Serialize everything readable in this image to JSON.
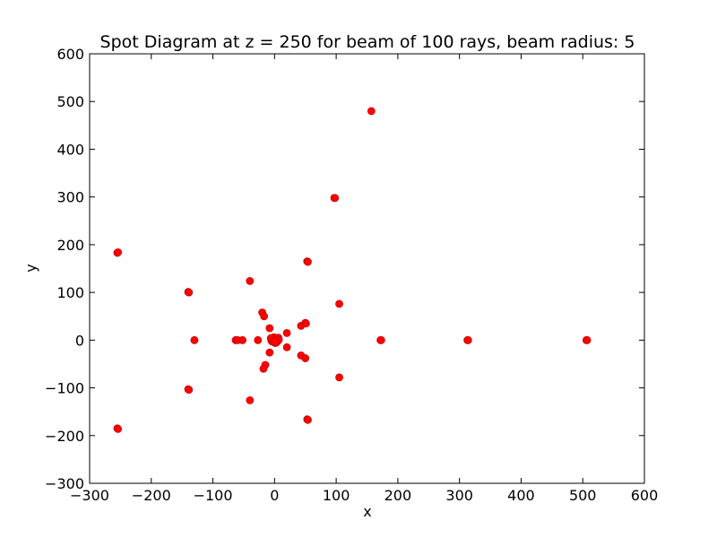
{
  "chart_data": {
    "type": "scatter",
    "title": "Spot Diagram at z = 250 for beam of 100 rays, beam radius: 5",
    "xlabel": "x",
    "ylabel": "y",
    "xlim": [
      -300,
      600
    ],
    "ylim": [
      -300,
      600
    ],
    "xticks": [
      "−300",
      "−200",
      "−100",
      "0",
      "100",
      "200",
      "300",
      "400",
      "500",
      "600"
    ],
    "yticks": [
      "−300",
      "−200",
      "−100",
      "0",
      "100",
      "200",
      "300",
      "400",
      "500",
      "600"
    ],
    "grid": false,
    "legend": "none",
    "marker_color": "#ff0000",
    "marker_edge_color": "#cc0000",
    "series": [
      {
        "x": [
          157,
          97,
          98,
          -255,
          -254,
          53,
          54,
          -40,
          -140,
          -139,
          105,
          -20,
          -17,
          -8,
          20,
          43,
          50,
          51,
          -130,
          -63,
          -60,
          -52,
          -27,
          172,
          173,
          313,
          314,
          506,
          507,
          -2,
          2,
          4,
          -4,
          6,
          0,
          3,
          -1,
          1,
          -3,
          5,
          7,
          -5,
          2,
          -6,
          0,
          20,
          43,
          50,
          -8,
          -15,
          -18,
          -40,
          -140,
          -139,
          105,
          53,
          54,
          -255,
          -254
        ],
        "y": [
          480,
          298,
          298,
          183,
          184,
          165,
          164,
          124,
          101,
          100,
          76,
          58,
          50,
          25,
          15,
          30,
          36,
          35,
          0,
          0,
          0,
          0,
          0,
          0,
          0,
          0,
          0,
          0,
          0,
          0,
          0,
          3,
          -3,
          5,
          5,
          -5,
          6,
          -6,
          2,
          -2,
          1,
          -1,
          -4,
          4,
          -3,
          -15,
          -32,
          -38,
          -26,
          -52,
          -60,
          -126,
          -103,
          -104,
          -78,
          -166,
          -167,
          -185,
          -186
        ]
      }
    ]
  }
}
